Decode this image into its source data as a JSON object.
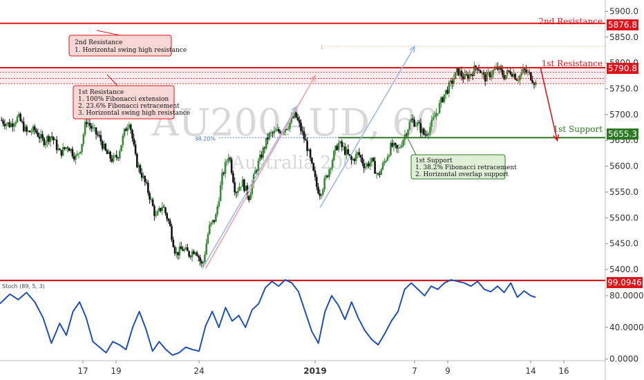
{
  "chart_data": [
    {
      "type": "candlestick",
      "watermark_symbol": "AU200AUD, 60",
      "watermark_name": "Australia 200",
      "y_ticks": [
        5400,
        5450,
        5500,
        5550,
        5600,
        5650,
        5700,
        5750,
        5800,
        5850,
        5900
      ],
      "y_tick_labels": [
        "5400.0",
        "5450.0",
        "5500.0",
        "5550.0",
        "5600.0",
        "5650.0",
        "5700.0",
        "5750.0",
        "5800.0",
        "5850.0",
        "5900.0"
      ],
      "ylim": [
        5380,
        5922
      ],
      "x_ticks": [
        {
          "label": "17",
          "pos": 17
        },
        {
          "label": "19",
          "pos": 19
        },
        {
          "label": "24",
          "pos": 24
        },
        {
          "label": "2019",
          "pos": 31
        },
        {
          "label": "7",
          "pos": 37
        },
        {
          "label": "9",
          "pos": 39
        },
        {
          "label": "14",
          "pos": 44
        },
        {
          "label": "16",
          "pos": 46
        }
      ],
      "xlim": [
        12,
        48.5
      ],
      "price_path": [
        [
          12.0,
          5690
        ],
        [
          12.6,
          5680
        ],
        [
          13.1,
          5695
        ],
        [
          13.6,
          5665
        ],
        [
          14.1,
          5670
        ],
        [
          14.6,
          5648
        ],
        [
          15.1,
          5660
        ],
        [
          15.6,
          5625
        ],
        [
          16.1,
          5640
        ],
        [
          16.6,
          5615
        ],
        [
          16.9,
          5640
        ],
        [
          17.2,
          5690
        ],
        [
          17.6,
          5670
        ],
        [
          18.0,
          5655
        ],
        [
          18.4,
          5625
        ],
        [
          18.8,
          5612
        ],
        [
          19.1,
          5620
        ],
        [
          19.5,
          5665
        ],
        [
          19.8,
          5690
        ],
        [
          20.2,
          5610
        ],
        [
          20.6,
          5580
        ],
        [
          21.0,
          5545
        ],
        [
          21.4,
          5500
        ],
        [
          21.8,
          5525
        ],
        [
          22.2,
          5490
        ],
        [
          22.6,
          5430
        ],
        [
          23.0,
          5440
        ],
        [
          23.4,
          5430
        ],
        [
          23.8,
          5440
        ],
        [
          24.2,
          5405
        ],
        [
          24.6,
          5480
        ],
        [
          25.0,
          5500
        ],
        [
          25.4,
          5580
        ],
        [
          25.8,
          5625
        ],
        [
          26.2,
          5550
        ],
        [
          26.6,
          5570
        ],
        [
          27.0,
          5540
        ],
        [
          27.4,
          5590
        ],
        [
          27.8,
          5625
        ],
        [
          28.2,
          5660
        ],
        [
          28.6,
          5665
        ],
        [
          29.0,
          5670
        ],
        [
          29.4,
          5680
        ],
        [
          29.8,
          5700
        ],
        [
          30.1,
          5675
        ],
        [
          30.5,
          5640
        ],
        [
          30.8,
          5600
        ],
        [
          31.1,
          5560
        ],
        [
          31.3,
          5548
        ],
        [
          31.7,
          5580
        ],
        [
          32.1,
          5620
        ],
        [
          32.4,
          5645
        ],
        [
          32.8,
          5630
        ],
        [
          33.2,
          5610
        ],
        [
          33.6,
          5625
        ],
        [
          34.0,
          5600
        ],
        [
          34.4,
          5610
        ],
        [
          34.8,
          5580
        ],
        [
          35.2,
          5610
        ],
        [
          35.6,
          5640
        ],
        [
          36.0,
          5630
        ],
        [
          36.4,
          5660
        ],
        [
          36.8,
          5690
        ],
        [
          37.2,
          5680
        ],
        [
          37.6,
          5660
        ],
        [
          38.0,
          5680
        ],
        [
          38.4,
          5710
        ],
        [
          38.8,
          5740
        ],
        [
          39.2,
          5760
        ],
        [
          39.6,
          5785
        ],
        [
          40.0,
          5770
        ],
        [
          40.4,
          5780
        ],
        [
          40.8,
          5795
        ],
        [
          41.2,
          5770
        ],
        [
          41.6,
          5780
        ],
        [
          42.0,
          5790
        ],
        [
          42.4,
          5775
        ],
        [
          42.8,
          5785
        ],
        [
          43.2,
          5770
        ],
        [
          43.6,
          5785
        ],
        [
          44.0,
          5775
        ],
        [
          44.3,
          5760
        ]
      ],
      "levels": [
        {
          "name": "2nd Resistance",
          "value": 5876.8,
          "label": "5876.8",
          "color": "#e0131a"
        },
        {
          "name": "1st Resistance",
          "value": 5790.8,
          "label": "5790.8",
          "color": "#e0131a"
        },
        {
          "name": "1st Support",
          "value": 5655.3,
          "label": "5655.3",
          "color": "#2a7a22"
        }
      ],
      "fib_labels": {
        "extension": "1",
        "retracement": "38.20%"
      },
      "annotations": [
        {
          "title": "2nd Resistance",
          "lines": [
            "1. Horizontal swing high resistance"
          ]
        },
        {
          "title": "1st Resistance",
          "lines": [
            "1. 100% Fibonacci extension",
            "2. 23.6% Fibonacci retracement",
            "3. Horizontal swing high resistance"
          ]
        },
        {
          "title": "1st Support",
          "lines": [
            "1. 38.2% Fibonacci retracement",
            "2. Horizontal overlap support"
          ]
        }
      ],
      "colors": {
        "up": "#3a8a3a",
        "down": "#111111",
        "resistance": "#e0131a",
        "support": "#2a7a22",
        "indicator": "#1f4fb3"
      }
    },
    {
      "type": "line",
      "indicator_label": "Stoch (89, 5, 3)",
      "y_ticks": [
        0,
        40,
        80
      ],
      "y_tick_labels": [
        "0.0000",
        "40.0000",
        "80.0000"
      ],
      "ylim": [
        -2,
        100
      ],
      "level": {
        "value": 99.0946,
        "label": "99.0946"
      },
      "series": [
        {
          "values": [
            [
              12.0,
              70
            ],
            [
              12.6,
              82
            ],
            [
              13.1,
              75
            ],
            [
              13.6,
              84
            ],
            [
              14.1,
              72
            ],
            [
              14.6,
              52
            ],
            [
              15.1,
              20
            ],
            [
              15.6,
              45
            ],
            [
              16.0,
              30
            ],
            [
              16.4,
              60
            ],
            [
              16.8,
              72
            ],
            [
              17.2,
              52
            ],
            [
              17.6,
              22
            ],
            [
              18.0,
              15
            ],
            [
              18.4,
              8
            ],
            [
              18.8,
              22
            ],
            [
              19.2,
              18
            ],
            [
              19.6,
              12
            ],
            [
              20.0,
              40
            ],
            [
              20.4,
              60
            ],
            [
              20.8,
              38
            ],
            [
              21.2,
              10
            ],
            [
              21.6,
              22
            ],
            [
              22.0,
              12
            ],
            [
              22.4,
              5
            ],
            [
              22.8,
              8
            ],
            [
              23.2,
              15
            ],
            [
              23.6,
              12
            ],
            [
              24.0,
              10
            ],
            [
              24.4,
              42
            ],
            [
              24.8,
              60
            ],
            [
              25.2,
              40
            ],
            [
              25.6,
              65
            ],
            [
              26.0,
              48
            ],
            [
              26.4,
              55
            ],
            [
              26.8,
              40
            ],
            [
              27.2,
              62
            ],
            [
              27.6,
              70
            ],
            [
              28.0,
              90
            ],
            [
              28.4,
              98
            ],
            [
              28.8,
              92
            ],
            [
              29.2,
              100
            ],
            [
              29.6,
              96
            ],
            [
              30.0,
              85
            ],
            [
              30.4,
              60
            ],
            [
              30.8,
              35
            ],
            [
              31.2,
              20
            ],
            [
              31.6,
              60
            ],
            [
              32.0,
              80
            ],
            [
              32.4,
              68
            ],
            [
              32.8,
              50
            ],
            [
              33.2,
              72
            ],
            [
              33.6,
              52
            ],
            [
              34.0,
              36
            ],
            [
              34.4,
              25
            ],
            [
              34.8,
              18
            ],
            [
              35.2,
              32
            ],
            [
              35.6,
              48
            ],
            [
              36.0,
              60
            ],
            [
              36.4,
              88
            ],
            [
              36.8,
              96
            ],
            [
              37.2,
              88
            ],
            [
              37.6,
              80
            ],
            [
              38.0,
              92
            ],
            [
              38.4,
              88
            ],
            [
              38.8,
              96
            ],
            [
              39.2,
              100
            ],
            [
              39.6,
              98
            ],
            [
              40.0,
              96
            ],
            [
              40.4,
              92
            ],
            [
              40.8,
              98
            ],
            [
              41.2,
              88
            ],
            [
              41.6,
              85
            ],
            [
              42.0,
              92
            ],
            [
              42.4,
              84
            ],
            [
              42.8,
              96
            ],
            [
              43.2,
              78
            ],
            [
              43.6,
              86
            ],
            [
              44.0,
              80
            ],
            [
              44.3,
              78
            ]
          ]
        }
      ]
    }
  ]
}
